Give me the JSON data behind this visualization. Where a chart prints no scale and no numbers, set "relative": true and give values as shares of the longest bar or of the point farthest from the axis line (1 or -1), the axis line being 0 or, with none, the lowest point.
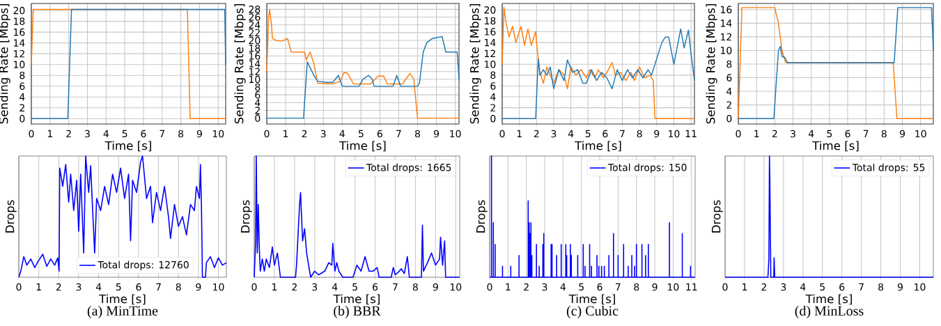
{
  "chart_data": [
    {
      "type": "line",
      "xlabel": "Time [s]",
      "ylabel": "Sending Rate [Mbps]",
      "xlim": [
        0,
        10.4
      ],
      "ylim": [
        -1.0,
        21.3
      ],
      "xticks": [
        0,
        1,
        2,
        3,
        4,
        5,
        6,
        7,
        8,
        9,
        10
      ],
      "yticks": [
        0,
        2,
        4,
        6,
        8,
        10,
        12,
        14,
        16,
        18,
        20
      ],
      "grid": true,
      "series": [
        {
          "color": "#ff7f0e",
          "x": [
            0,
            0.1,
            8.35,
            8.5,
            10.4
          ],
          "values": [
            10,
            20.2,
            20.2,
            0,
            0
          ]
        },
        {
          "color": "#1f77b4",
          "x": [
            0,
            1.95,
            2.15,
            10.35,
            10.4
          ],
          "values": [
            0,
            0,
            20.2,
            20.2,
            10
          ]
        }
      ]
    },
    {
      "type": "line",
      "xlabel": "Time [s]",
      "ylabel": "Sending Rate [Mbps]",
      "xlim": [
        0,
        10.2
      ],
      "ylim": [
        -1.5,
        29.5
      ],
      "xticks": [
        0,
        1,
        2,
        3,
        4,
        5,
        6,
        7,
        8,
        9,
        10
      ],
      "yticks": [
        0,
        2,
        4,
        6,
        8,
        10,
        12,
        14,
        16,
        18,
        20,
        22,
        24,
        26,
        28
      ],
      "grid": true,
      "series": [
        {
          "color": "#ff7f0e",
          "x": [
            0,
            0.1,
            0.15,
            0.25,
            0.3,
            0.5,
            0.8,
            1.1,
            1.3,
            2.0,
            2.1,
            2.3,
            2.5,
            2.7,
            3.5,
            3.9,
            4.1,
            4.3,
            4.6,
            5.5,
            5.9,
            6.2,
            6.4,
            7.2,
            7.6,
            7.8,
            8.0,
            10.2
          ],
          "values": [
            12,
            26,
            28,
            24,
            20.5,
            20,
            19.8,
            20.5,
            17,
            17,
            15,
            17,
            14,
            9,
            8.8,
            9.5,
            11.8,
            11.5,
            8.8,
            8.8,
            10.8,
            10.8,
            8.8,
            8.8,
            11.5,
            10,
            0,
            0
          ]
        },
        {
          "color": "#1f77b4",
          "x": [
            0,
            1.95,
            2.15,
            2.3,
            2.5,
            2.7,
            3.2,
            3.5,
            3.8,
            4.0,
            4.9,
            5.1,
            5.4,
            5.6,
            5.7,
            6.7,
            6.9,
            7.1,
            8.0,
            8.1,
            8.3,
            8.5,
            8.8,
            9.3,
            9.5,
            10.1,
            10.2
          ],
          "values": [
            0,
            0,
            14.5,
            13,
            11,
            9.5,
            9.2,
            9.2,
            11,
            8.2,
            8.2,
            10,
            11,
            10,
            8.2,
            8.2,
            11,
            8.2,
            8.2,
            9,
            17,
            19.5,
            20.5,
            21,
            17,
            17,
            10
          ]
        }
      ]
    },
    {
      "type": "line",
      "xlabel": "Time [s]",
      "ylabel": "Sending Rate [Mbps]",
      "xlim": [
        0,
        11.2
      ],
      "ylim": [
        -1.0,
        21.2
      ],
      "xticks": [
        0,
        1,
        2,
        3,
        4,
        5,
        6,
        7,
        8,
        9,
        10,
        11
      ],
      "yticks": [
        0,
        2,
        4,
        6,
        8,
        10,
        12,
        14,
        16,
        18,
        20
      ],
      "grid": true,
      "series": [
        {
          "color": "#ff7f0e",
          "x": [
            0,
            0.1,
            0.2,
            0.4,
            0.6,
            0.8,
            1.1,
            1.3,
            1.5,
            1.7,
            1.95,
            2.05,
            2.2,
            2.4,
            2.6,
            2.8,
            3.0,
            3.3,
            3.6,
            3.8,
            4.0,
            4.3,
            4.6,
            4.9,
            5.1,
            5.4,
            5.6,
            5.9,
            6.1,
            6.4,
            6.6,
            6.9,
            7.2,
            7.5,
            7.7,
            8.0,
            8.3,
            8.6,
            8.8,
            8.9,
            11.2
          ],
          "values": [
            10,
            20.5,
            18,
            15,
            17,
            14,
            17,
            13.5,
            16.5,
            13.5,
            16,
            12.5,
            8.5,
            6.5,
            9.5,
            8,
            6.5,
            9,
            8,
            5.5,
            9.5,
            8,
            9,
            7.5,
            9,
            7.5,
            9,
            7.5,
            8.5,
            10.3,
            8,
            8.5,
            7,
            8.5,
            7,
            9.5,
            7.5,
            8,
            7,
            0,
            0
          ]
        },
        {
          "color": "#1f77b4",
          "x": [
            0,
            1.95,
            2.1,
            2.2,
            2.4,
            2.6,
            2.8,
            3.0,
            3.3,
            3.6,
            3.8,
            4.1,
            4.4,
            4.7,
            4.9,
            5.2,
            5.5,
            5.8,
            6.1,
            6.4,
            6.7,
            7.0,
            7.3,
            7.6,
            7.9,
            8.2,
            8.5,
            8.7,
            9.0,
            9.3,
            9.5,
            9.7,
            10.0,
            10.4,
            10.6,
            10.85,
            11.0,
            11.2
          ],
          "values": [
            0,
            0,
            11,
            8,
            9,
            8,
            9.5,
            5.5,
            9,
            7,
            10.8,
            8.5,
            9,
            6.5,
            6.5,
            9,
            7,
            8.5,
            7.5,
            5.5,
            9,
            7,
            9,
            7.5,
            9,
            7.5,
            9,
            8,
            11,
            14,
            15,
            15,
            10,
            16.5,
            13,
            16.3,
            12,
            7
          ]
        }
      ]
    },
    {
      "type": "line",
      "xlabel": "Time [s]",
      "ylabel": "Sending Rate [Mbps]",
      "xlim": [
        0,
        10.7
      ],
      "ylim": [
        -0.8,
        16.9
      ],
      "xticks": [
        0,
        1,
        2,
        3,
        4,
        5,
        6,
        7,
        8,
        9,
        10
      ],
      "yticks": [
        0,
        2,
        4,
        6,
        8,
        10,
        12,
        14,
        16
      ],
      "grid": true,
      "series": [
        {
          "color": "#ff7f0e",
          "x": [
            0,
            0.2,
            2.0,
            2.2,
            2.4,
            2.6,
            8.5,
            8.7,
            10.7
          ],
          "values": [
            0,
            16.3,
            16.3,
            14,
            10,
            8.2,
            8.2,
            0,
            0
          ]
        },
        {
          "color": "#1f77b4",
          "x": [
            0,
            1.95,
            2.2,
            2.3,
            2.4,
            2.55,
            2.7,
            8.55,
            8.75,
            10.6,
            10.7
          ],
          "values": [
            0,
            0,
            10,
            10.6,
            9.1,
            9,
            8.2,
            8.2,
            16.3,
            16.3,
            10
          ]
        }
      ]
    },
    {
      "type": "line",
      "relative": true,
      "xlabel": "Time [s]",
      "ylabel": "Drops",
      "xlim": [
        0,
        10.4
      ],
      "xticks": [
        0,
        1,
        2,
        3,
        4,
        5,
        6,
        7,
        8,
        9,
        10
      ],
      "grid": "x",
      "legend": "bottom",
      "annotations": [
        "(a) MinTime"
      ],
      "series": [
        {
          "name": "Total drops: 12760",
          "color": "#0000ff",
          "x": [
            0,
            0.1,
            0.25,
            0.4,
            0.6,
            0.8,
            1.0,
            1.2,
            1.4,
            1.6,
            1.8,
            1.95,
            2.02,
            2.05,
            2.2,
            2.35,
            2.5,
            2.6,
            2.75,
            2.9,
            3.0,
            3.1,
            3.25,
            3.35,
            3.5,
            3.6,
            3.7,
            3.8,
            3.9,
            4.1,
            4.3,
            4.5,
            4.7,
            4.9,
            5.1,
            5.3,
            5.5,
            5.6,
            5.7,
            5.9,
            6.1,
            6.2,
            6.4,
            6.6,
            6.7,
            6.9,
            7.1,
            7.3,
            7.5,
            7.6,
            7.8,
            8.0,
            8.2,
            8.4,
            8.6,
            8.8,
            8.9,
            9.05,
            9.1,
            9.15,
            9.2,
            9.35,
            9.4,
            9.6,
            9.8,
            10.0,
            10.2,
            10.4
          ],
          "values": [
            0,
            0.05,
            0.17,
            0.1,
            0.15,
            0.08,
            0.14,
            0.19,
            0.09,
            0.15,
            0.1,
            0.16,
            0.05,
            0.9,
            0.75,
            0.93,
            0.62,
            0.85,
            0.55,
            0.8,
            0.38,
            0.85,
            0.2,
            1.0,
            0.7,
            0.92,
            0.55,
            0.2,
            0.65,
            0.55,
            0.75,
            0.6,
            0.85,
            0.7,
            0.9,
            0.65,
            0.85,
            0.3,
            0.8,
            0.7,
            0.95,
            1.0,
            0.65,
            0.75,
            0.45,
            0.7,
            0.55,
            0.75,
            0.5,
            0.32,
            0.6,
            0.42,
            0.5,
            0.35,
            0.6,
            0.55,
            0.75,
            0.65,
            0.93,
            0.6,
            0,
            0,
            0.12,
            0.17,
            0.08,
            0.16,
            0.1,
            0.12
          ]
        }
      ]
    },
    {
      "type": "line",
      "relative": true,
      "xlabel": "Time [s]",
      "ylabel": "Drops",
      "xlim": [
        0,
        10.2
      ],
      "xticks": [
        0,
        1,
        2,
        3,
        4,
        5,
        6,
        7,
        8,
        9,
        10
      ],
      "grid": "x",
      "legend": "top right",
      "annotations": [
        "(b) BBR"
      ],
      "series": [
        {
          "name": "Total drops: 1665",
          "color": "#0000ff",
          "x": [
            0,
            0.07,
            0.1,
            0.15,
            0.2,
            0.25,
            0.3,
            0.4,
            0.5,
            0.6,
            0.75,
            0.9,
            1.0,
            1.15,
            1.3,
            2.05,
            2.1,
            2.25,
            2.3,
            2.4,
            2.5,
            2.6,
            2.7,
            2.8,
            3.0,
            3.2,
            3.5,
            3.7,
            3.85,
            3.9,
            4.0,
            4.1,
            4.2,
            4.4,
            4.9,
            5.0,
            5.1,
            5.3,
            5.5,
            5.7,
            5.9,
            6.1,
            6.2,
            6.8,
            6.9,
            7.0,
            7.2,
            7.3,
            7.45,
            7.6,
            7.7,
            8.3,
            8.35,
            8.4,
            8.6,
            8.8,
            9.0,
            9.2,
            9.25,
            9.35,
            9.45,
            9.5,
            10.2
          ],
          "values": [
            0,
            0.3,
            1.0,
            0.2,
            0.6,
            0.25,
            0.05,
            0.15,
            0.05,
            0.15,
            0.08,
            0.25,
            0.1,
            0.2,
            0,
            0,
            0.1,
            0.6,
            0.7,
            0.3,
            0.4,
            0.2,
            0.1,
            0,
            0.05,
            0.02,
            0.05,
            0.12,
            0.1,
            0.28,
            0.05,
            0.12,
            0.05,
            0,
            0,
            0.05,
            0.1,
            0.05,
            0.17,
            0.05,
            0.05,
            0.08,
            0,
            0,
            0.08,
            0.02,
            0.05,
            0.07,
            0.03,
            0.17,
            0,
            0,
            0.43,
            0.05,
            0.12,
            0.2,
            0.1,
            0.15,
            0.33,
            0.1,
            0.3,
            0,
            0
          ]
        }
      ]
    },
    {
      "type": "line",
      "relative": true,
      "xlabel": "Time [s]",
      "ylabel": "Drops",
      "xlim": [
        0,
        11.2
      ],
      "xticks": [
        0,
        1,
        2,
        3,
        4,
        5,
        6,
        7,
        8,
        9,
        10,
        11
      ],
      "grid": "x",
      "legend": "top right",
      "annotations": [
        "(c) Cubic"
      ],
      "series": [
        {
          "name": "Total drops: 150",
          "color": "#0000ff",
          "x": [
            0,
            0.1,
            0.1,
            0.1,
            0.2,
            0.2,
            0.2,
            0.3,
            0.3,
            0.3,
            0.7,
            0.7,
            0.7,
            1.15,
            1.15,
            1.15,
            1.6,
            1.6,
            1.6,
            2.1,
            2.1,
            2.1,
            2.15,
            2.15,
            2.15,
            2.2,
            2.2,
            2.2,
            2.25,
            2.25,
            2.25,
            2.3,
            2.3,
            2.3,
            2.55,
            2.55,
            2.55,
            2.7,
            2.7,
            2.7,
            2.9,
            2.9,
            2.9,
            2.95,
            2.95,
            2.95,
            3.35,
            3.35,
            3.35,
            3.4,
            3.4,
            3.4,
            3.65,
            3.65,
            3.65,
            3.9,
            3.9,
            3.9,
            4.15,
            4.15,
            4.15,
            4.2,
            4.2,
            4.2,
            4.4,
            4.4,
            4.4,
            4.45,
            4.45,
            4.45,
            4.8,
            4.8,
            4.8,
            5.1,
            5.1,
            5.1,
            5.2,
            5.2,
            5.2,
            5.45,
            5.45,
            5.45,
            5.55,
            5.55,
            5.55,
            5.85,
            5.85,
            5.85,
            5.95,
            5.95,
            5.95,
            6.1,
            6.1,
            6.1,
            6.25,
            6.25,
            6.25,
            6.5,
            6.5,
            6.5,
            6.75,
            6.75,
            6.75,
            7.0,
            7.0,
            7.0,
            7.3,
            7.3,
            7.3,
            7.55,
            7.55,
            7.55,
            7.75,
            7.75,
            7.75,
            7.9,
            7.9,
            7.9,
            8.0,
            8.0,
            8.0,
            8.3,
            8.3,
            8.3,
            8.5,
            8.5,
            8.5,
            8.65,
            8.65,
            8.65,
            9.8,
            9.8,
            9.8,
            10.5,
            10.5,
            10.5,
            10.95,
            10.95,
            10.95,
            11.2
          ],
          "values": [
            0,
            0,
            1.0,
            0,
            0,
            0.45,
            0,
            0,
            0.27,
            0,
            0,
            0.09,
            0,
            0,
            0.09,
            0,
            0,
            0.18,
            0,
            0,
            0.63,
            0,
            0,
            0.45,
            0,
            0,
            0.36,
            0,
            0,
            0.45,
            0,
            0,
            0.18,
            0,
            0,
            0.27,
            0,
            0,
            0.09,
            0,
            0,
            0.27,
            0,
            0,
            0.36,
            0,
            0,
            0.27,
            0,
            0,
            0.27,
            0,
            0,
            0.18,
            0,
            0,
            0.27,
            0,
            0,
            0.27,
            0,
            0,
            0.18,
            0,
            0,
            0.27,
            0,
            0,
            0.18,
            0,
            0,
            0.18,
            0,
            0,
            0.27,
            0,
            0,
            0.09,
            0,
            0,
            0.27,
            0,
            0,
            0.09,
            0,
            0,
            0.18,
            0,
            0,
            0.09,
            0,
            0,
            0.09,
            0,
            0,
            0.09,
            0,
            0,
            0.18,
            0,
            0,
            0.36,
            0,
            0,
            0.18,
            0,
            0,
            0.27,
            0,
            0,
            0.09,
            0,
            0,
            0.18,
            0,
            0,
            0.09,
            0,
            0,
            0.27,
            0,
            0,
            0.27,
            0,
            0,
            0.18,
            0,
            0,
            0.27,
            0,
            0,
            0.45,
            0,
            0,
            0.36,
            0,
            0,
            0.09,
            0,
            0
          ]
        }
      ]
    },
    {
      "type": "line",
      "relative": true,
      "xlabel": "Time [s]",
      "ylabel": "Drops",
      "xlim": [
        0,
        10.7
      ],
      "xticks": [
        0,
        1,
        2,
        3,
        4,
        5,
        6,
        7,
        8,
        9,
        10
      ],
      "grid": "x",
      "legend": "top right",
      "annotations": [
        "(d) MinLoss"
      ],
      "series": [
        {
          "name": "Total drops: 55",
          "color": "#0000ff",
          "x": [
            0,
            2.2,
            2.25,
            2.28,
            2.3,
            2.33,
            2.35,
            2.5,
            2.52,
            2.55,
            10.7
          ],
          "values": [
            0,
            0,
            0.15,
            1.0,
            0.8,
            0.3,
            0,
            0,
            0.16,
            0,
            0
          ]
        }
      ]
    }
  ]
}
